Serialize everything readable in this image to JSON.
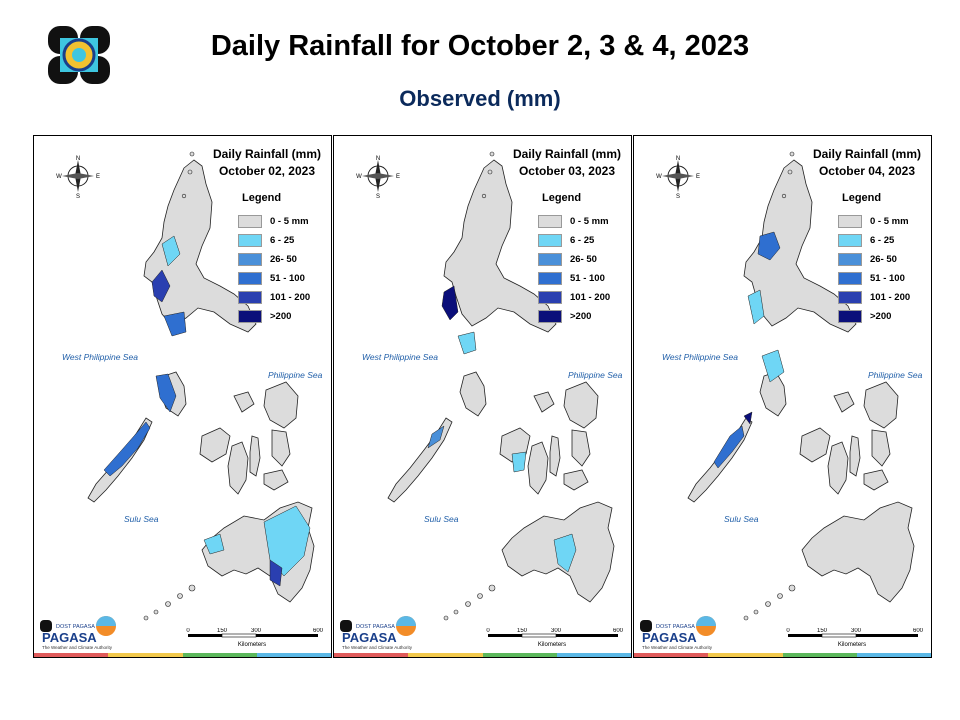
{
  "title": "Daily Rainfall for October 2, 3 & 4, 2023",
  "subtitle": "Observed (mm)",
  "legend": {
    "title": "Legend",
    "items": [
      {
        "label": "0 - 5 mm",
        "color": "#dcdcdc"
      },
      {
        "label": "6 - 25",
        "color": "#6fd6f5"
      },
      {
        "label": "26- 50",
        "color": "#4a90d9"
      },
      {
        "label": "51 - 100",
        "color": "#2f6fd0"
      },
      {
        "label": "101 - 200",
        "color": "#2a3fb0"
      },
      {
        "label": ">200",
        "color": "#0b0f7a"
      }
    ]
  },
  "seas": {
    "west": "West Philippine Sea",
    "east": "Philippine Sea",
    "sulu": "Sulu Sea"
  },
  "scale": {
    "ticks": [
      "0",
      "150",
      "300",
      "600"
    ],
    "unit": "Kilometers"
  },
  "compass": {
    "n": "N",
    "s": "S",
    "e": "E",
    "w": "W"
  },
  "brand": {
    "small": "DOST PAGASA",
    "name": "PAGASA",
    "tagline": "The Weather and Climate Authority"
  },
  "panels": [
    {
      "heading": "Daily Rainfall (mm)",
      "date": "October 02, 2023"
    },
    {
      "heading": "Daily Rainfall (mm)",
      "date": "October 03, 2023"
    },
    {
      "heading": "Daily Rainfall (mm)",
      "date": "October 04, 2023"
    }
  ],
  "strip_colors": [
    "#e05b5b",
    "#f2c94c",
    "#5cb85c",
    "#5bb8e6"
  ]
}
